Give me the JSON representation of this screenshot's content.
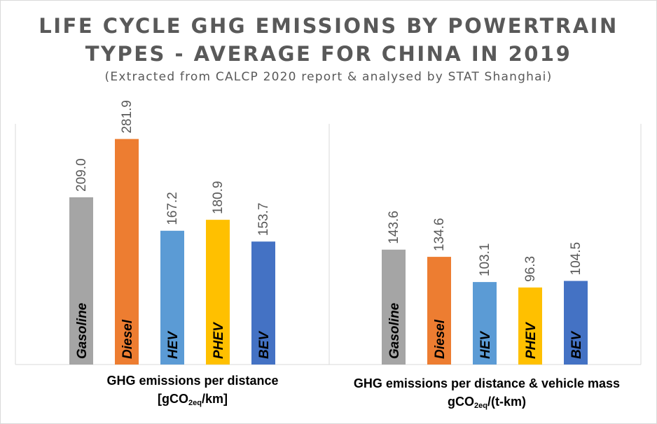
{
  "title_line1": "LIFE CYCLE GHG EMISSIONS BY POWERTRAIN",
  "title_line2": "TYPES - AVERAGE FOR CHINA IN 2019",
  "subtitle": "(Extracted from CALCP 2020 report & analysed by STAT Shanghai)",
  "colors": {
    "Gasoline": "#a5a5a5",
    "Diesel": "#ed7d31",
    "HEV": "#5b9bd5",
    "PHEV": "#ffc000",
    "BEV": "#4472c4"
  },
  "chart_data": [
    {
      "type": "bar",
      "title": "GHG emissions per distance",
      "unit_main": "[gCO",
      "unit_sub": "2eq",
      "unit_end": "/km]",
      "categories": [
        "Gasoline",
        "Diesel",
        "HEV",
        "PHEV",
        "BEV"
      ],
      "values": [
        209.0,
        281.9,
        167.2,
        180.9,
        153.7
      ],
      "data_labels": [
        "209.0",
        "281.9",
        "167.2",
        "180.9",
        "153.7"
      ],
      "ylim": [
        0,
        300
      ],
      "grid": false,
      "legend": "none"
    },
    {
      "type": "bar",
      "title": "GHG emissions per distance & vehicle mass",
      "unit_main": "gCO",
      "unit_sub": "2eq",
      "unit_end": "/(t-km)",
      "categories": [
        "Gasoline",
        "Diesel",
        "HEV",
        "PHEV",
        "BEV"
      ],
      "values": [
        143.6,
        134.6,
        103.1,
        96.3,
        104.5
      ],
      "data_labels": [
        "143.6",
        "134.6",
        "103.1",
        "96.3",
        "104.5"
      ],
      "ylim": [
        0,
        300
      ],
      "grid": false,
      "legend": "none"
    }
  ]
}
